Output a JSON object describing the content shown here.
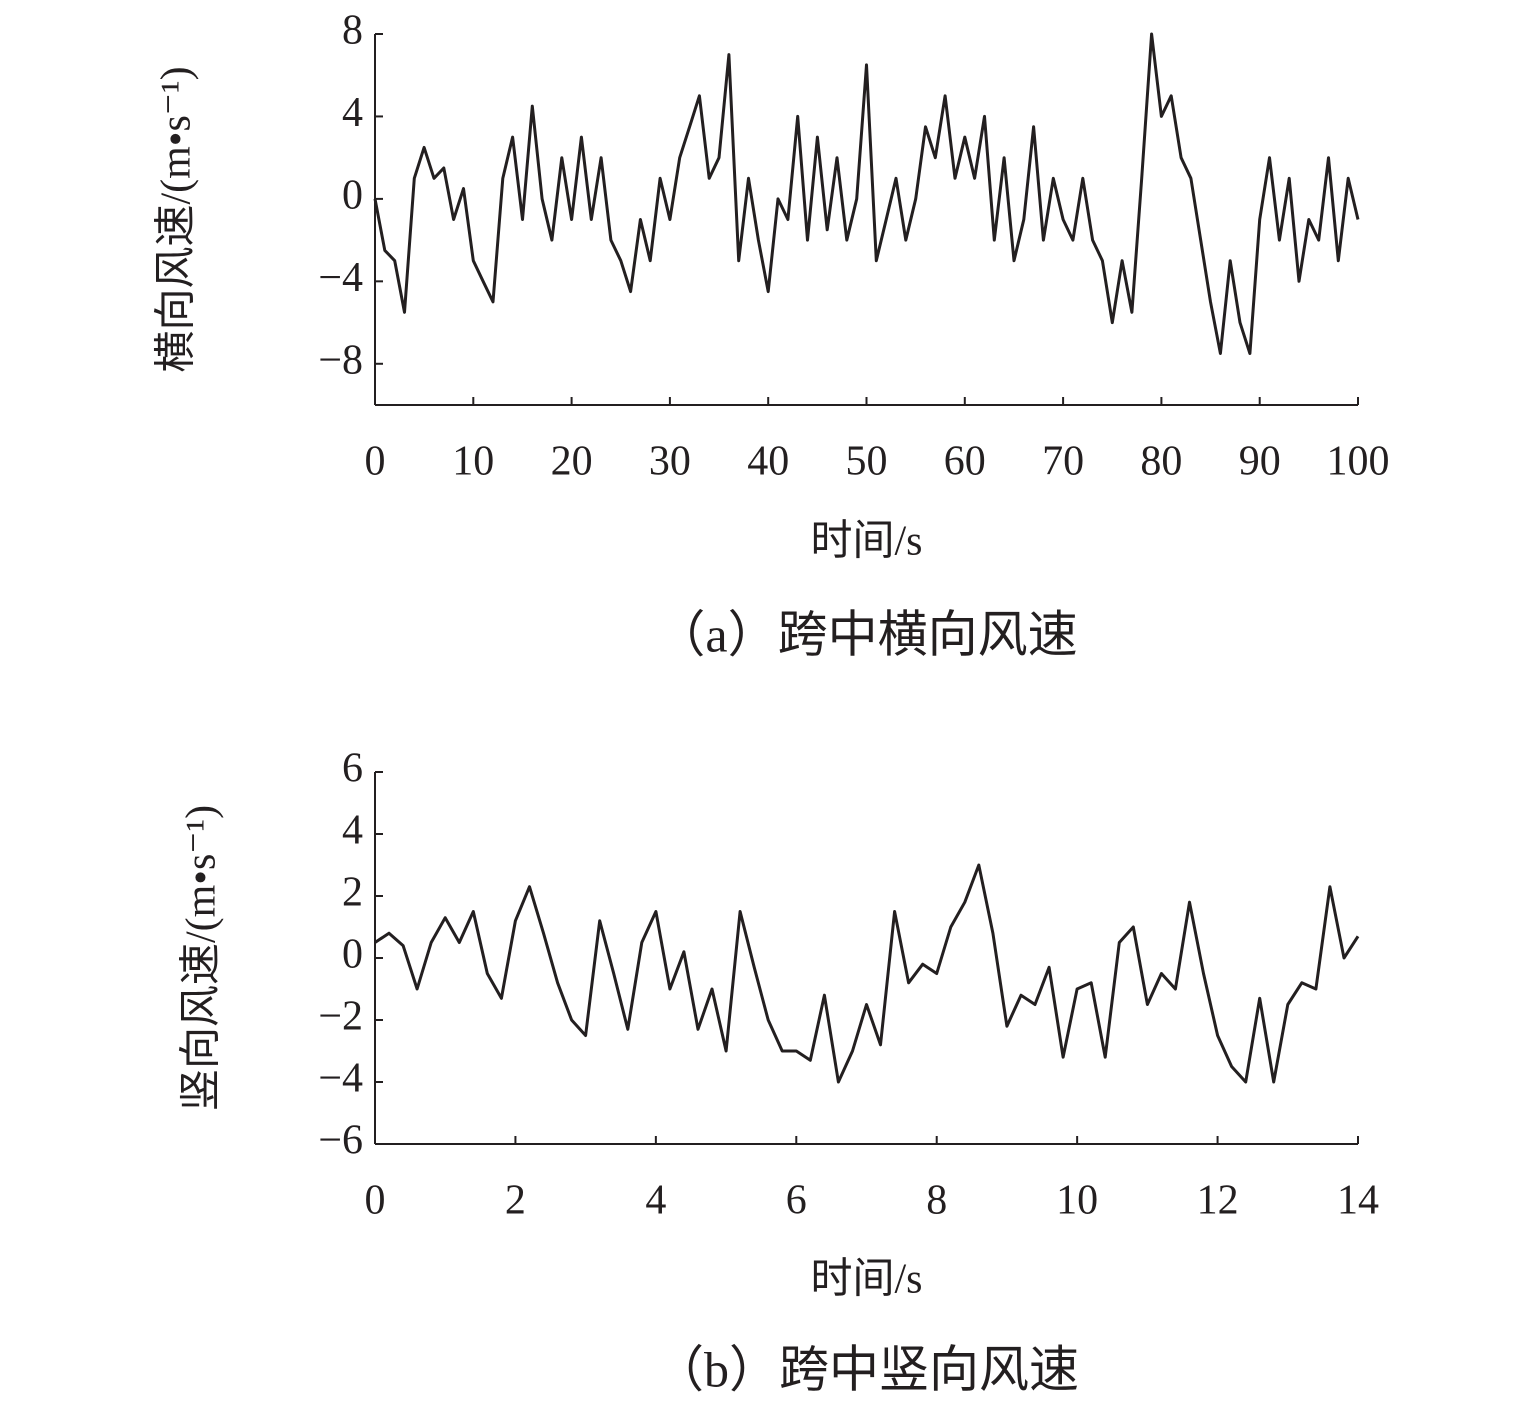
{
  "chart_data": [
    {
      "type": "line",
      "caption": "（a）跨中横向风速",
      "x_label": "时间/s",
      "y_label": "横向风速/(m•s⁻¹)",
      "xlim": [
        0,
        100
      ],
      "xticks": [
        0,
        10,
        20,
        30,
        40,
        50,
        60,
        70,
        80,
        90,
        100
      ],
      "ylim": [
        -10,
        8
      ],
      "yticks": [
        {
          "value": -8,
          "label": "−8"
        },
        {
          "value": -4,
          "label": "−4"
        },
        0,
        4,
        8
      ],
      "x": [
        0,
        1,
        2,
        3,
        4,
        5,
        6,
        7,
        8,
        9,
        10,
        11,
        12,
        13,
        14,
        15,
        16,
        17,
        18,
        19,
        20,
        21,
        22,
        23,
        24,
        25,
        26,
        27,
        28,
        29,
        30,
        31,
        32,
        33,
        34,
        35,
        36,
        37,
        38,
        39,
        40,
        41,
        42,
        43,
        44,
        45,
        46,
        47,
        48,
        49,
        50,
        51,
        52,
        53,
        54,
        55,
        56,
        57,
        58,
        59,
        60,
        61,
        62,
        63,
        64,
        65,
        66,
        67,
        68,
        69,
        70,
        71,
        72,
        73,
        74,
        75,
        76,
        77,
        78,
        79,
        80,
        81,
        82,
        83,
        84,
        85,
        86,
        87,
        88,
        89,
        90,
        91,
        92,
        93,
        94,
        95,
        96,
        97,
        98,
        99,
        100
      ],
      "series": [
        {
          "color": "#231f20",
          "values": [
            0,
            -2.5,
            -3,
            -5.5,
            1,
            2.5,
            1,
            1.5,
            -1,
            0.5,
            -3,
            -4,
            -5,
            1,
            3,
            -1,
            4.5,
            0,
            -2,
            2,
            -1,
            3,
            -1,
            2,
            -2,
            -3,
            -4.5,
            -1,
            -3,
            1,
            -1,
            2,
            3.5,
            5,
            1,
            2,
            7,
            -3,
            1,
            -2,
            -4.5,
            0,
            -1,
            4,
            -2,
            3,
            -1.5,
            2,
            -2,
            0,
            6.5,
            -3,
            -1,
            1,
            -2,
            0,
            3.5,
            2,
            5,
            1,
            3,
            1,
            4,
            -2,
            2,
            -3,
            -1,
            3.5,
            -2,
            1,
            -1,
            -2,
            1,
            -2,
            -3,
            -6,
            -3,
            -5.5,
            1,
            8,
            4,
            5,
            2,
            1,
            -2,
            -5,
            -7.5,
            -3,
            -6,
            -7.5,
            -1,
            2,
            -2,
            1,
            -4,
            -1,
            -2,
            2,
            -3,
            1,
            -1
          ]
        }
      ]
    },
    {
      "type": "line",
      "caption": "（b）跨中竖向风速",
      "x_label": "时间/s",
      "y_label": "竖向风速/(m•s⁻¹)",
      "xlim": [
        0,
        14
      ],
      "xticks": [
        0,
        2,
        4,
        6,
        8,
        10,
        12,
        14
      ],
      "ylim": [
        -6,
        6
      ],
      "yticks": [
        {
          "value": -6,
          "label": "−6"
        },
        {
          "value": -4,
          "label": "−4"
        },
        {
          "value": -2,
          "label": "−2"
        },
        0,
        2,
        4,
        6
      ],
      "x": [
        0,
        0.2,
        0.4,
        0.6,
        0.8,
        1,
        1.2,
        1.4,
        1.6,
        1.8,
        2,
        2.2,
        2.4,
        2.6,
        2.8,
        3,
        3.2,
        3.4,
        3.6,
        3.8,
        4,
        4.2,
        4.4,
        4.6,
        4.8,
        5,
        5.2,
        5.4,
        5.6,
        5.8,
        6,
        6.2,
        6.4,
        6.6,
        6.8,
        7,
        7.2,
        7.4,
        7.6,
        7.8,
        8,
        8.2,
        8.4,
        8.6,
        8.8,
        9,
        9.2,
        9.4,
        9.6,
        9.8,
        10,
        10.2,
        10.4,
        10.6,
        10.8,
        11,
        11.2,
        11.4,
        11.6,
        11.8,
        12,
        12.2,
        12.4,
        12.6,
        12.8,
        13,
        13.2,
        13.4,
        13.6,
        13.8,
        14
      ],
      "series": [
        {
          "color": "#231f20",
          "values": [
            0.5,
            0.8,
            0.4,
            -1,
            0.5,
            1.3,
            0.5,
            1.5,
            -0.5,
            -1.3,
            1.2,
            2.3,
            0.8,
            -0.8,
            -2,
            -2.5,
            1.2,
            -0.5,
            -2.3,
            0.5,
            1.5,
            -1,
            0.2,
            -2.3,
            -1,
            -3,
            1.5,
            -0.3,
            -2,
            -3,
            -3,
            -3.3,
            -1.2,
            -4,
            -3,
            -1.5,
            -2.8,
            1.5,
            -0.8,
            -0.2,
            -0.5,
            1,
            1.8,
            3,
            0.8,
            -2.2,
            -1.2,
            -1.5,
            -0.3,
            -3.2,
            -1,
            -0.8,
            -3.2,
            0.5,
            1,
            -1.5,
            -0.5,
            -1,
            1.8,
            -0.5,
            -2.5,
            -3.5,
            -4,
            -1.3,
            -4,
            -1.5,
            -0.8,
            -1,
            2.3,
            0,
            0.7
          ]
        }
      ]
    }
  ]
}
